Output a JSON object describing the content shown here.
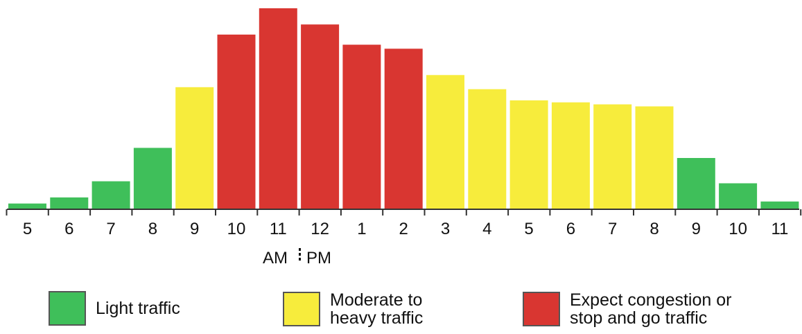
{
  "chart_data": {
    "type": "bar",
    "categories": [
      "5",
      "6",
      "7",
      "8",
      "9",
      "10",
      "11",
      "12",
      "1",
      "2",
      "3",
      "4",
      "5",
      "6",
      "7",
      "8",
      "9",
      "10",
      "11"
    ],
    "values": [
      2.5,
      5.5,
      13.5,
      30,
      60,
      86,
      99,
      91,
      81,
      79,
      66,
      59,
      53.5,
      52.5,
      51.5,
      50.5,
      25,
      12.5,
      3.5
    ],
    "levels": [
      "light",
      "light",
      "light",
      "light",
      "moderate",
      "heavy",
      "heavy",
      "heavy",
      "heavy",
      "heavy",
      "moderate",
      "moderate",
      "moderate",
      "moderate",
      "moderate",
      "moderate",
      "light",
      "light",
      "light"
    ],
    "ylim": [
      0,
      100
    ],
    "am_label": "AM",
    "pm_label": "PM",
    "legend": [
      {
        "key": "light",
        "lines": [
          "Light traffic"
        ],
        "color": "#3fbf5a"
      },
      {
        "key": "moderate",
        "lines": [
          "Moderate to",
          "heavy traffic"
        ],
        "color": "#f7ec3c"
      },
      {
        "key": "heavy",
        "lines": [
          "Expect congestion or",
          "stop and go traffic"
        ],
        "color": "#d93631"
      }
    ]
  }
}
